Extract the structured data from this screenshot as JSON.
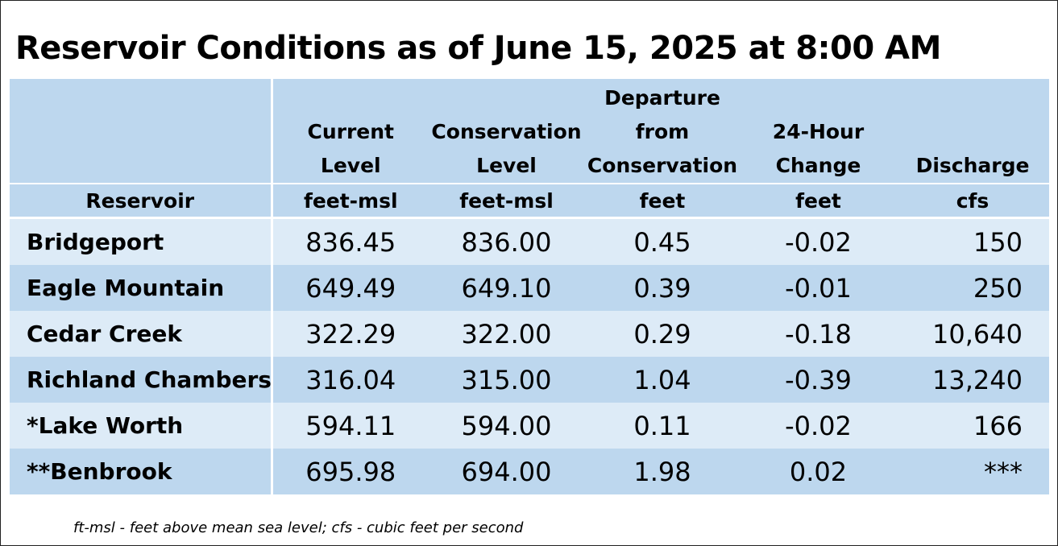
{
  "title": "Reservoir Conditions as of June 15, 2025 at 8:00 AM",
  "columns": [
    {
      "label_lines": [
        "",
        "",
        ""
      ],
      "unit": "Reservoir"
    },
    {
      "label_lines": [
        "",
        "Current",
        "Level"
      ],
      "unit": "feet-msl"
    },
    {
      "label_lines": [
        "",
        "Conservation",
        "Level"
      ],
      "unit": "feet-msl"
    },
    {
      "label_lines": [
        "Departure",
        "from",
        "Conservation"
      ],
      "unit": "feet"
    },
    {
      "label_lines": [
        "",
        "24-Hour",
        "Change"
      ],
      "unit": "feet"
    },
    {
      "label_lines": [
        "",
        "",
        "Discharge"
      ],
      "unit": "cfs"
    }
  ],
  "rows": [
    {
      "name": "Bridgeport",
      "current": "836.45",
      "conservation": "836.00",
      "departure": "0.45",
      "change": "-0.02",
      "discharge": "150"
    },
    {
      "name": "Eagle Mountain",
      "current": "649.49",
      "conservation": "649.10",
      "departure": "0.39",
      "change": "-0.01",
      "discharge": "250"
    },
    {
      "name": "Cedar Creek",
      "current": "322.29",
      "conservation": "322.00",
      "departure": "0.29",
      "change": "-0.18",
      "discharge": "10,640"
    },
    {
      "name": "Richland Chambers",
      "current": "316.04",
      "conservation": "315.00",
      "departure": "1.04",
      "change": "-0.39",
      "discharge": "13,240"
    },
    {
      "name": "*Lake Worth",
      "current": "594.11",
      "conservation": "594.00",
      "departure": "0.11",
      "change": "-0.02",
      "discharge": "166"
    },
    {
      "name": "**Benbrook",
      "current": "695.98",
      "conservation": "694.00",
      "departure": "1.98",
      "change": "0.02",
      "discharge": "***"
    }
  ],
  "footnote": "ft-msl - feet above mean sea level; cfs - cubic feet per second",
  "colors": {
    "header_bg": "#bdd7ee",
    "row_light": "#ddebf7",
    "row_dark": "#bdd7ee",
    "divider": "#ffffff"
  }
}
